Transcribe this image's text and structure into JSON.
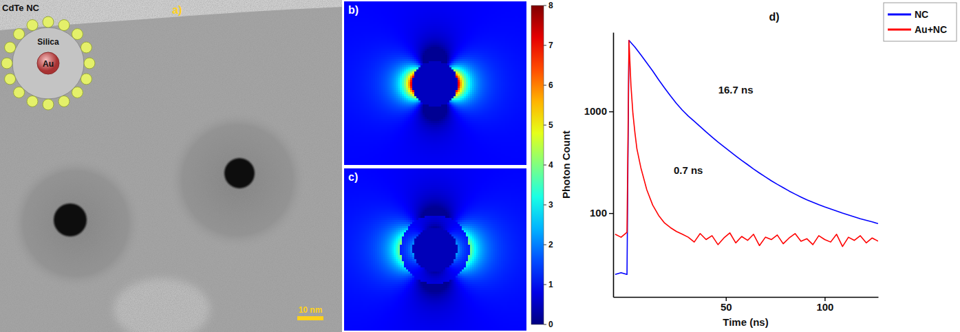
{
  "chart_data": {
    "type": "line",
    "panel_label": "d)",
    "log": "y",
    "xlabel": "Time (ns)",
    "ylabel": "Photon Count",
    "xlim": [
      -7,
      127
    ],
    "xticks": [
      50,
      100
    ],
    "ylim": [
      15,
      6000
    ],
    "yticks": [
      100,
      1000
    ],
    "legend": "right",
    "series": [
      {
        "name": "NC",
        "color": "#0000ff",
        "x": [
          -6,
          -3,
          0,
          1,
          4,
          7,
          10,
          13,
          16,
          19,
          22,
          25,
          28,
          31,
          34,
          37,
          40,
          43,
          46,
          49,
          52,
          55,
          58,
          61,
          64,
          67,
          70,
          73,
          76,
          79,
          82,
          85,
          88,
          91,
          94,
          97,
          100,
          103,
          106,
          109,
          112,
          115,
          118,
          121,
          124,
          127
        ],
        "values": [
          25,
          26,
          25,
          5000,
          4300,
          3600,
          3000,
          2500,
          2050,
          1700,
          1420,
          1200,
          1030,
          900,
          800,
          710,
          630,
          560,
          500,
          450,
          405,
          365,
          330,
          300,
          272,
          248,
          227,
          208,
          192,
          178,
          165,
          154,
          144,
          135,
          128,
          121,
          115,
          110,
          105,
          100,
          96,
          92,
          88,
          85,
          82,
          79
        ]
      },
      {
        "name": "Au+NC",
        "color": "#ff0000",
        "x": [
          -6,
          -3,
          0,
          1,
          2,
          3,
          4,
          5,
          7,
          10,
          13,
          16,
          19,
          22,
          25,
          28,
          31,
          34,
          37,
          40,
          43,
          46,
          49,
          52,
          55,
          58,
          61,
          64,
          67,
          70,
          73,
          76,
          79,
          82,
          85,
          88,
          91,
          94,
          97,
          100,
          103,
          106,
          109,
          112,
          115,
          118,
          121,
          124,
          127
        ],
        "values": [
          62,
          58,
          65,
          5000,
          1800,
          950,
          620,
          430,
          280,
          170,
          120,
          95,
          80,
          72,
          66,
          62,
          58,
          52,
          63,
          55,
          60,
          49,
          57,
          64,
          51,
          59,
          54,
          62,
          48,
          58,
          55,
          61,
          50,
          57,
          63,
          53,
          56,
          49,
          60,
          55,
          52,
          62,
          47,
          58,
          54,
          60,
          51,
          57,
          53
        ]
      }
    ],
    "annotations": [
      {
        "text": "16.7 ns",
        "x": 55,
        "y": 1620
      },
      {
        "text": "0.7 ns",
        "x": 31,
        "y": 263
      }
    ]
  },
  "figure": {
    "panel_a": {
      "label": "a)",
      "schematic_labels": [
        "CdTe NC",
        "Silica",
        "Au"
      ],
      "scale_bar": "10 nm"
    },
    "panel_b": {
      "label": "b)"
    },
    "panel_c": {
      "label": "c)"
    },
    "colorbar": {
      "range": [
        0,
        8
      ],
      "ticks": [
        0,
        1,
        2,
        3,
        4,
        5,
        6,
        7,
        8
      ]
    }
  }
}
